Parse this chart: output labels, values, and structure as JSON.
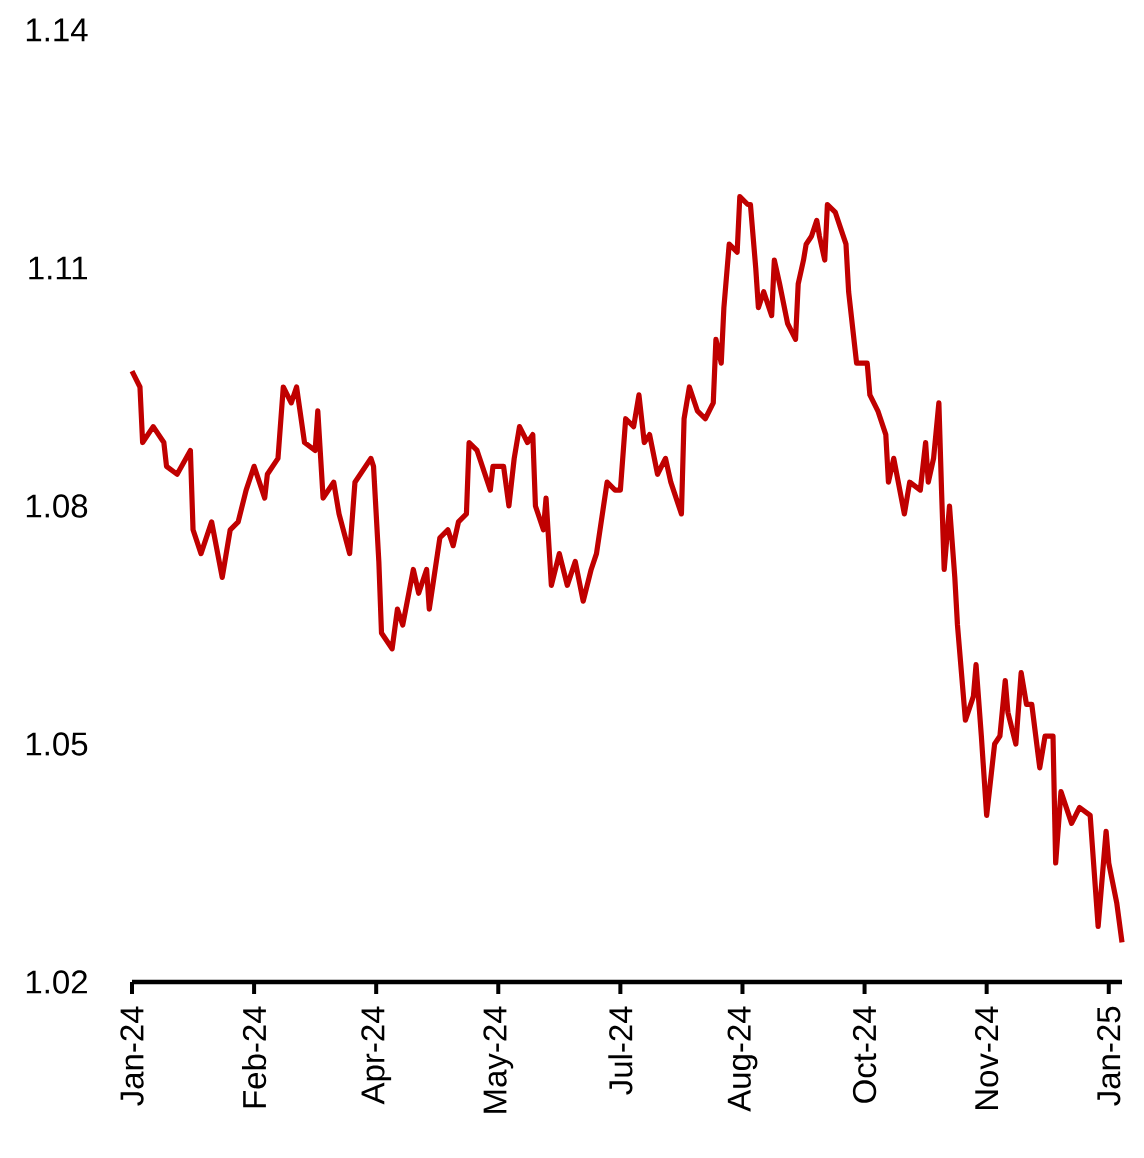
{
  "chart_data": {
    "type": "line",
    "x": [
      "2024-01-02",
      "2024-01-05",
      "2024-01-06",
      "2024-01-10",
      "2024-01-14",
      "2024-01-15",
      "2024-01-19",
      "2024-01-24",
      "2024-01-25",
      "2024-01-28",
      "2024-02-01",
      "2024-02-05",
      "2024-02-08",
      "2024-02-11",
      "2024-02-14",
      "2024-02-17",
      "2024-02-21",
      "2024-02-22",
      "2024-02-26",
      "2024-02-28",
      "2024-03-02",
      "2024-03-04",
      "2024-03-07",
      "2024-03-11",
      "2024-03-12",
      "2024-03-14",
      "2024-03-18",
      "2024-03-20",
      "2024-03-24",
      "2024-03-26",
      "2024-04-01",
      "2024-04-02",
      "2024-04-04",
      "2024-04-05",
      "2024-04-09",
      "2024-04-11",
      "2024-04-13",
      "2024-04-17",
      "2024-04-19",
      "2024-04-22",
      "2024-04-23",
      "2024-04-27",
      "2024-04-30",
      "2024-05-02",
      "2024-05-04",
      "2024-05-07",
      "2024-05-08",
      "2024-05-11",
      "2024-05-16",
      "2024-05-17",
      "2024-05-21",
      "2024-05-23",
      "2024-05-25",
      "2024-05-27",
      "2024-05-30",
      "2024-06-01",
      "2024-06-02",
      "2024-06-05",
      "2024-06-06",
      "2024-06-08",
      "2024-06-11",
      "2024-06-14",
      "2024-06-17",
      "2024-06-20",
      "2024-06-23",
      "2024-06-25",
      "2024-06-29",
      "2024-07-02",
      "2024-07-04",
      "2024-07-06",
      "2024-07-09",
      "2024-07-11",
      "2024-07-13",
      "2024-07-15",
      "2024-07-18",
      "2024-07-21",
      "2024-07-23",
      "2024-07-27",
      "2024-07-28",
      "2024-07-30",
      "2024-08-02",
      "2024-08-05",
      "2024-08-08",
      "2024-08-09",
      "2024-08-11",
      "2024-08-12",
      "2024-08-14",
      "2024-08-17",
      "2024-08-18",
      "2024-08-21",
      "2024-08-22",
      "2024-08-24",
      "2024-08-25",
      "2024-08-27",
      "2024-08-30",
      "2024-08-31",
      "2024-09-02",
      "2024-09-05",
      "2024-09-08",
      "2024-09-09",
      "2024-09-11",
      "2024-09-12",
      "2024-09-14",
      "2024-09-16",
      "2024-09-17",
      "2024-09-19",
      "2024-09-20",
      "2024-09-23",
      "2024-09-25",
      "2024-09-27",
      "2024-09-28",
      "2024-09-29",
      "2024-10-01",
      "2024-10-05",
      "2024-10-06",
      "2024-10-09",
      "2024-10-12",
      "2024-10-13",
      "2024-10-15",
      "2024-10-19",
      "2024-10-21",
      "2024-10-25",
      "2024-10-27",
      "2024-10-28",
      "2024-10-30",
      "2024-11-01",
      "2024-11-02",
      "2024-11-03",
      "2024-11-05",
      "2024-11-07",
      "2024-11-08",
      "2024-11-11",
      "2024-11-14",
      "2024-11-15",
      "2024-11-17",
      "2024-11-19",
      "2024-11-22",
      "2024-11-24",
      "2024-11-26",
      "2024-11-27",
      "2024-11-30",
      "2024-12-02",
      "2024-12-04",
      "2024-12-06",
      "2024-12-09",
      "2024-12-11",
      "2024-12-14",
      "2024-12-15",
      "2024-12-17",
      "2024-12-21",
      "2024-12-24",
      "2024-12-28",
      "2024-12-31",
      "2025-01-03",
      "2025-01-04",
      "2025-01-07",
      "2025-01-09"
    ],
    "series": [
      {
        "color": "#c00000",
        "values": [
          1.097,
          1.095,
          1.088,
          1.09,
          1.088,
          1.085,
          1.084,
          1.087,
          1.077,
          1.074,
          1.078,
          1.071,
          1.077,
          1.078,
          1.082,
          1.085,
          1.081,
          1.084,
          1.086,
          1.095,
          1.093,
          1.095,
          1.088,
          1.087,
          1.092,
          1.081,
          1.083,
          1.079,
          1.074,
          1.083,
          1.086,
          1.085,
          1.073,
          1.064,
          1.062,
          1.067,
          1.065,
          1.072,
          1.069,
          1.072,
          1.067,
          1.076,
          1.077,
          1.075,
          1.078,
          1.079,
          1.088,
          1.087,
          1.082,
          1.085,
          1.085,
          1.08,
          1.086,
          1.09,
          1.088,
          1.089,
          1.08,
          1.077,
          1.081,
          1.07,
          1.074,
          1.07,
          1.073,
          1.068,
          1.072,
          1.074,
          1.083,
          1.082,
          1.082,
          1.091,
          1.09,
          1.094,
          1.088,
          1.089,
          1.084,
          1.086,
          1.083,
          1.079,
          1.091,
          1.095,
          1.092,
          1.091,
          1.093,
          1.101,
          1.098,
          1.105,
          1.113,
          1.112,
          1.119,
          1.118,
          1.118,
          1.11,
          1.105,
          1.107,
          1.104,
          1.111,
          1.108,
          1.103,
          1.101,
          1.108,
          1.111,
          1.113,
          1.114,
          1.116,
          1.114,
          1.111,
          1.118,
          1.117,
          1.115,
          1.113,
          1.107,
          1.104,
          1.098,
          1.098,
          1.094,
          1.092,
          1.089,
          1.083,
          1.086,
          1.079,
          1.083,
          1.082,
          1.088,
          1.083,
          1.086,
          1.093,
          1.082,
          1.072,
          1.08,
          1.071,
          1.065,
          1.053,
          1.056,
          1.06,
          1.051,
          1.041,
          1.05,
          1.051,
          1.058,
          1.054,
          1.05,
          1.059,
          1.055,
          1.055,
          1.047,
          1.051,
          1.051,
          1.035,
          1.044,
          1.04,
          1.042,
          1.041,
          1.027,
          1.039,
          1.035,
          1.03,
          1.025
        ]
      }
    ],
    "xlim": [
      "2024-01-02",
      "2025-01-09"
    ],
    "ylim": [
      1.02,
      1.14
    ],
    "xticks": [
      {
        "value": "2024-01-02",
        "label": "Jan-24"
      },
      {
        "value": "2024-02-17",
        "label": "Feb-24"
      },
      {
        "value": "2024-04-03",
        "label": "Apr-24"
      },
      {
        "value": "2024-05-19",
        "label": "May-24"
      },
      {
        "value": "2024-07-04",
        "label": "Jul-24"
      },
      {
        "value": "2024-08-19",
        "label": "Aug-24"
      },
      {
        "value": "2024-10-04",
        "label": "Oct-24"
      },
      {
        "value": "2024-11-19",
        "label": "Nov-24"
      },
      {
        "value": "2025-01-04",
        "label": "Jan-25"
      }
    ],
    "yticks": [
      1.02,
      1.05,
      1.08,
      1.11,
      1.14
    ]
  }
}
